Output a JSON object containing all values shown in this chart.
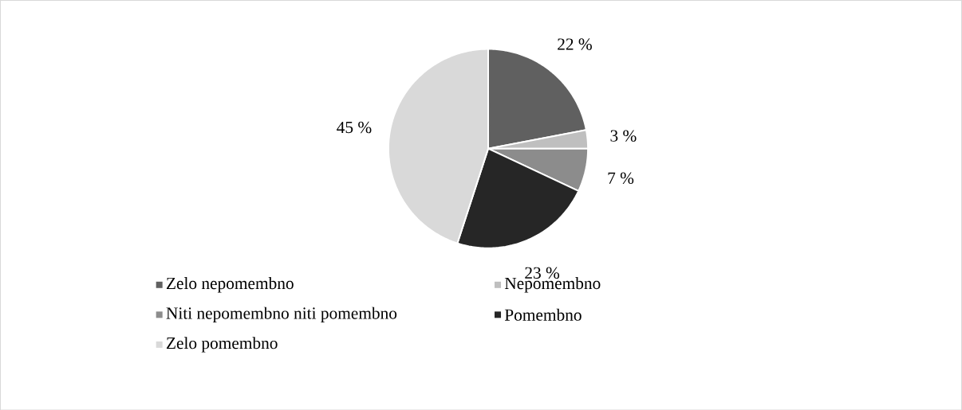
{
  "chart_data": {
    "type": "pie",
    "categories": [
      "Zelo nepomembno",
      "Nepomembno",
      "Niti nepomembno niti pomembno",
      "Pomembno",
      "Zelo pomembno"
    ],
    "values": [
      22,
      3,
      7,
      23,
      45
    ],
    "value_labels": [
      "22 %",
      "3 %",
      "7 %",
      "23 %",
      "45 %"
    ],
    "colors": [
      "#606060",
      "#bfbfbf",
      "#8c8c8c",
      "#262626",
      "#d9d9d9"
    ],
    "legend": "bottom"
  }
}
